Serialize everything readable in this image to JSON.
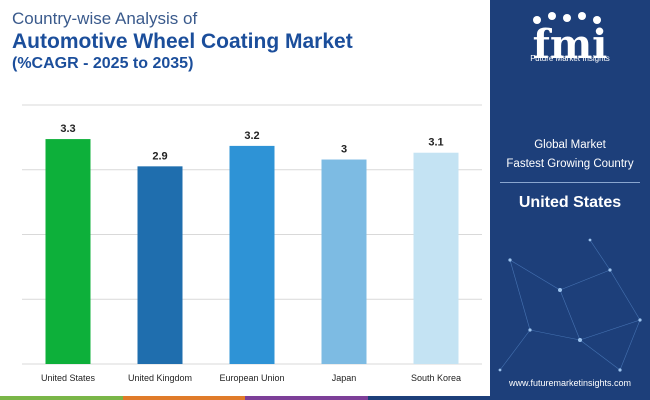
{
  "header": {
    "line1": "Country-wise Analysis of",
    "line2": "Automotive Wheel Coating Market",
    "line3": "(%CAGR - 2025 to 2035)"
  },
  "brand": {
    "logo_text": "fmi",
    "name": "Future Market Insights",
    "website": "www.futuremarketinsights.com"
  },
  "panel": {
    "label_line1": "Global Market",
    "label_line2": "Fastest Growing Country",
    "value": "United States"
  },
  "colors": {
    "panel_bg": "#1d3f7a",
    "gridline": "#d9d9d9",
    "strip": [
      "#7ab648",
      "#e07b2a",
      "#7d3f98",
      "#1d3f7a"
    ]
  },
  "chart_data": {
    "type": "bar",
    "title": "",
    "xlabel": "",
    "ylabel": "",
    "categories": [
      "United States",
      "United Kingdom",
      "European Union",
      "Japan",
      "South Korea"
    ],
    "values": [
      3.3,
      2.9,
      3.2,
      3,
      3.1
    ],
    "value_labels": [
      "3.3",
      "2.9",
      "3.2",
      "3",
      "3.1"
    ],
    "colors": [
      "#0db03a",
      "#1f6eae",
      "#2e93d6",
      "#7dbbe3",
      "#c4e3f3"
    ],
    "ylim": [
      0,
      3.8
    ],
    "gridlines": [
      0.95,
      1.9,
      2.85,
      3.8
    ],
    "grid": true,
    "legend": "none"
  }
}
